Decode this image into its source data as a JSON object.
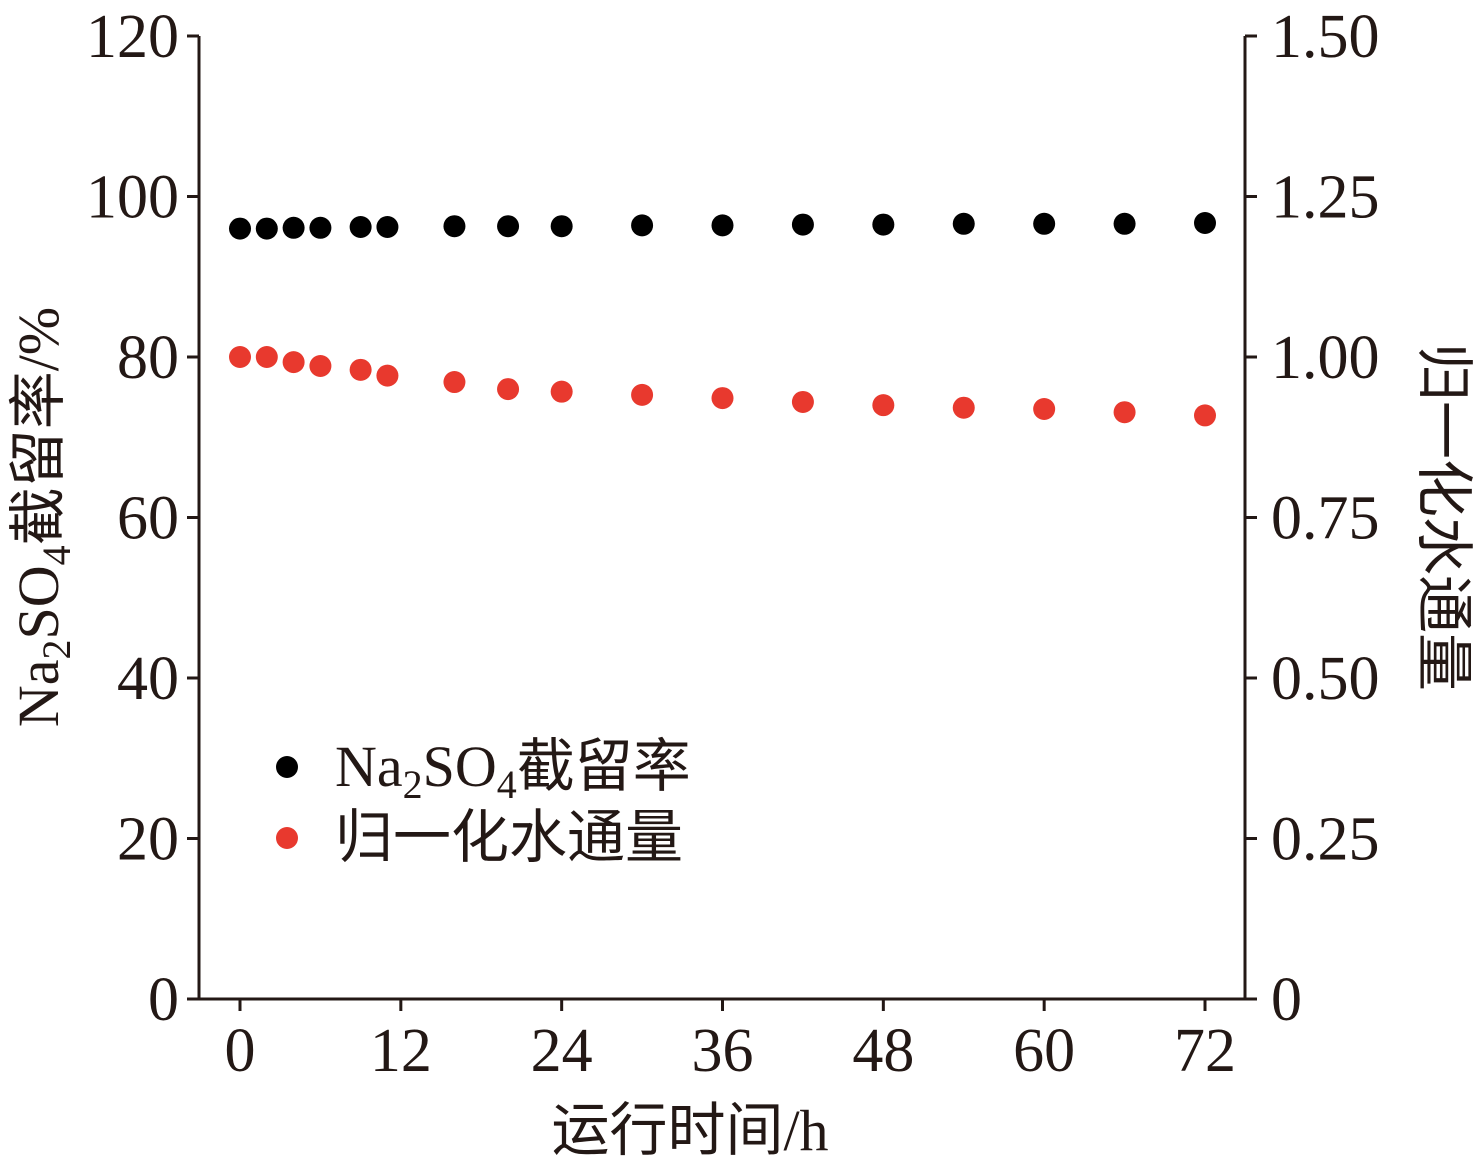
{
  "chart_data": {
    "type": "scatter",
    "x": [
      0,
      2,
      4,
      6,
      9,
      11,
      16,
      20,
      24,
      30,
      36,
      42,
      48,
      54,
      60,
      66,
      72
    ],
    "xlabel": "运行时间/h",
    "xlim": [
      0,
      72
    ],
    "xticks": [
      "0",
      "12",
      "24",
      "36",
      "48",
      "60",
      "72"
    ],
    "ylabel_left": {
      "pre": "Na",
      "sub1": "2",
      "mid": "SO",
      "sub2": "4",
      "post": "截留率/%"
    },
    "ylim_left": [
      0,
      120
    ],
    "yticks_left": [
      "0",
      "20",
      "40",
      "60",
      "80",
      "100",
      "120"
    ],
    "ylabel_right": "归一化水通量",
    "ylim_right": [
      0,
      1.5
    ],
    "yticks_right": [
      "0",
      "0.25",
      "0.50",
      "0.75",
      "1.00",
      "1.25",
      "1.50"
    ],
    "series": [
      {
        "name": {
          "pre": "Na",
          "sub1": "2",
          "mid": "SO",
          "sub2": "4",
          "post": "截留率"
        },
        "axis": "left",
        "color": "#000000",
        "values": [
          96.0,
          96.0,
          96.1,
          96.1,
          96.2,
          96.2,
          96.3,
          96.3,
          96.3,
          96.4,
          96.4,
          96.5,
          96.5,
          96.6,
          96.6,
          96.6,
          96.7
        ]
      },
      {
        "name": "归一化水通量",
        "axis": "right",
        "color": "#e8392e",
        "values": [
          1.0,
          1.0,
          0.992,
          0.986,
          0.98,
          0.971,
          0.961,
          0.95,
          0.946,
          0.941,
          0.936,
          0.93,
          0.925,
          0.921,
          0.919,
          0.914,
          0.909
        ]
      }
    ],
    "grid": false,
    "legend_position": "lower-left"
  }
}
